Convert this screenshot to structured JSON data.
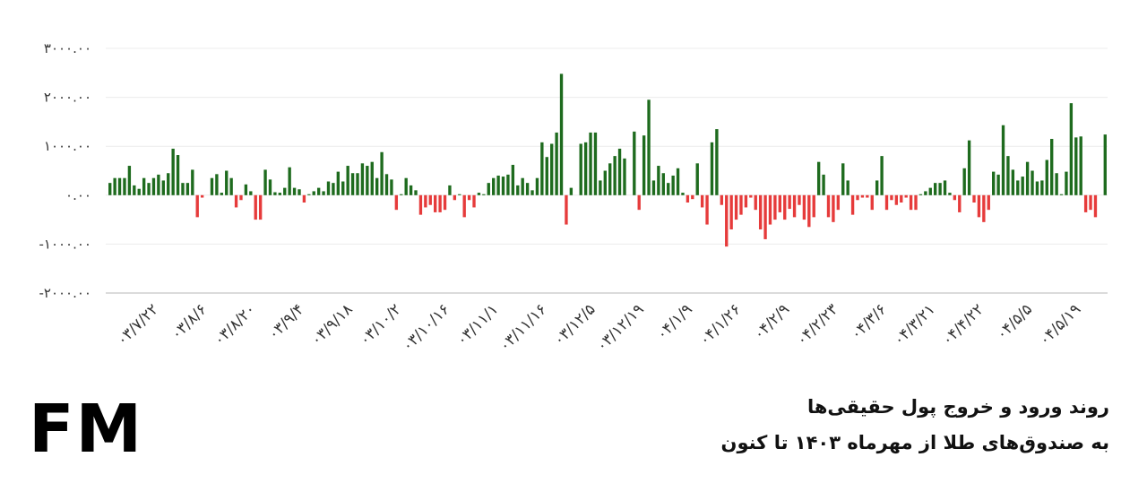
{
  "chart_data": {
    "type": "bar",
    "title": "",
    "xlabel": "",
    "ylabel": "",
    "ylim": [
      -2000,
      3000
    ],
    "yticks": [
      3000,
      2000,
      1000,
      0,
      -1000,
      -2000
    ],
    "ytick_labels": [
      "۳۰۰۰.۰۰",
      "۲۰۰۰.۰۰",
      "۱۰۰۰.۰۰",
      "۰.۰۰",
      "-۱۰۰۰.۰۰",
      "-۲۰۰۰.۰۰"
    ],
    "xtick_labels": [
      "۰۳/۷/۲۲",
      "۰۳/۸/۶",
      "۰۳/۸/۲۰",
      "۰۳/۹/۴",
      "۰۳/۹/۱۸",
      "۰۳/۱۰/۲",
      "۰۳/۱۰/۱۶",
      "۰۳/۱۱/۱",
      "۰۳/۱۱/۱۶",
      "۰۳/۱۲/۵",
      "۰۳/۱۲/۱۹",
      "۰۴/۱/۹",
      "۰۴/۱/۲۶",
      "۰۴/۲/۹",
      "۰۴/۲/۲۳",
      "۰۴/۳/۶",
      "۰۴/۳/۲۱",
      "۰۴/۴/۲۲",
      "۰۴/۵/۵",
      "۰۴/۵/۱۹"
    ],
    "xtick_index": [
      9,
      19,
      29,
      39,
      49,
      59,
      69,
      79,
      89,
      99,
      109,
      119,
      129,
      139,
      149,
      159,
      169,
      179,
      189,
      199
    ],
    "positive_color": "#1e6b1e",
    "negative_color": "#e63b3b",
    "grid": true,
    "legend": "none",
    "values": [
      250,
      350,
      350,
      350,
      600,
      200,
      130,
      350,
      250,
      350,
      420,
      300,
      450,
      950,
      820,
      250,
      250,
      520,
      -450,
      -50,
      0,
      350,
      430,
      50,
      500,
      350,
      -250,
      -100,
      220,
      80,
      -500,
      -500,
      520,
      320,
      60,
      50,
      150,
      570,
      150,
      120,
      -150,
      20,
      80,
      150,
      80,
      280,
      250,
      480,
      280,
      600,
      450,
      450,
      650,
      600,
      680,
      350,
      880,
      430,
      320,
      -300,
      20,
      350,
      200,
      100,
      -400,
      -250,
      -200,
      -350,
      -350,
      -300,
      200,
      -100,
      20,
      -450,
      -100,
      -250,
      50,
      20,
      250,
      350,
      400,
      380,
      420,
      620,
      200,
      350,
      250,
      100,
      350,
      1080,
      780,
      1050,
      1280,
      2480,
      -600,
      150,
      0,
      1050,
      1080,
      1280,
      1280,
      300,
      500,
      650,
      800,
      950,
      750,
      0,
      1300,
      -300,
      1220,
      1950,
      300,
      600,
      450,
      250,
      400,
      550,
      50,
      -150,
      -80,
      650,
      -250,
      -600,
      1080,
      1350,
      -200,
      -1050,
      -700,
      -500,
      -400,
      -250,
      -50,
      -300,
      -700,
      -900,
      -600,
      -500,
      -350,
      -500,
      -280,
      -450,
      -200,
      -500,
      -650,
      -450,
      680,
      420,
      -450,
      -550,
      -300,
      650,
      300,
      -400,
      -100,
      -50,
      -50,
      -300,
      300,
      800,
      -300,
      -100,
      -200,
      -150,
      -50,
      -300,
      -300,
      20,
      80,
      150,
      250,
      250,
      300,
      50,
      -100,
      -350,
      550,
      1120,
      -150,
      -450,
      -550,
      -300,
      480,
      420,
      1430,
      800,
      520,
      300,
      380,
      680,
      500,
      280,
      300,
      720,
      1150,
      450,
      20,
      480,
      1880,
      1180,
      1200,
      -350,
      -300,
      -450,
      0,
      1240
    ]
  },
  "branding": {
    "logo_text": "FM"
  },
  "caption": {
    "line1": "روند ورود و خروج پول حقیقی‌ها",
    "line2": "به صندوق‌های طلا از مهرماه ۱۴۰۳ تا کنون"
  }
}
